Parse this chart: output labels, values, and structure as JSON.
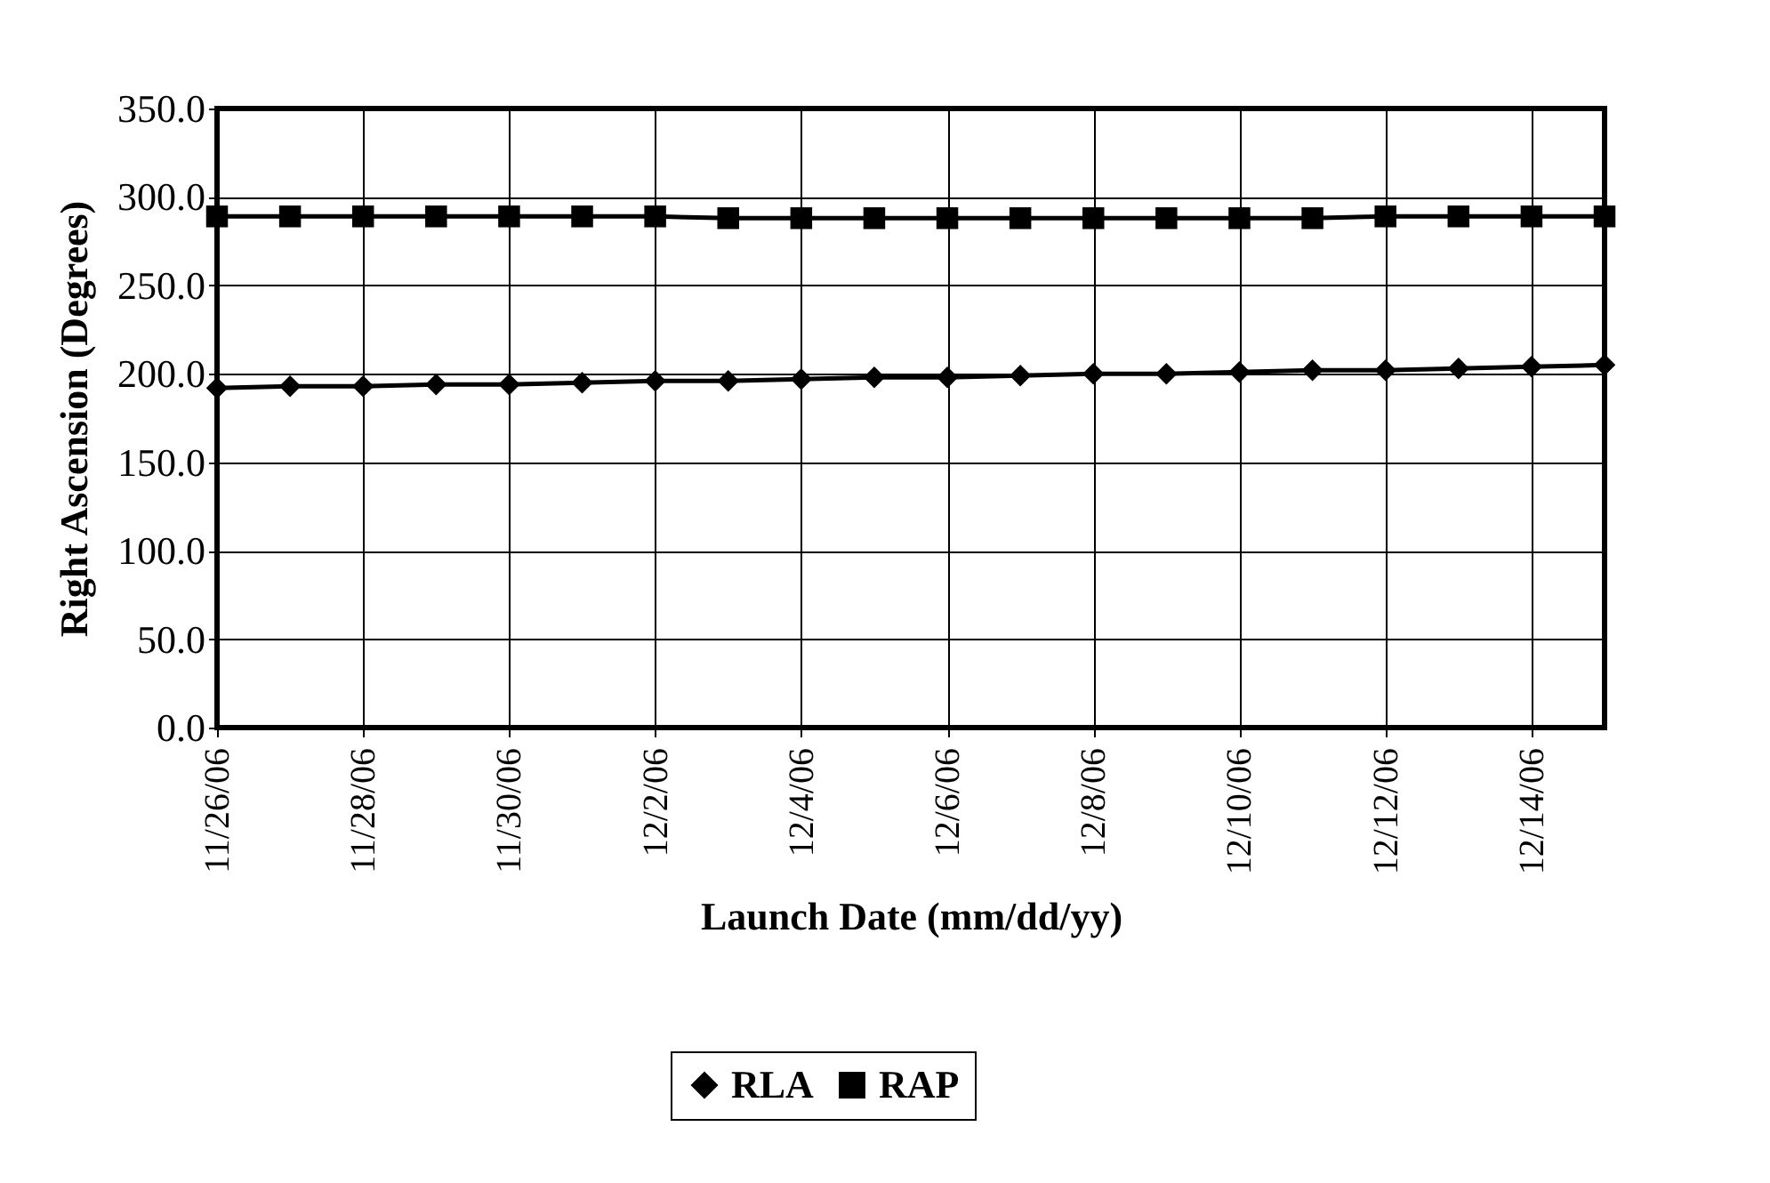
{
  "chart_data": {
    "type": "line",
    "xlabel": "Launch Date (mm/dd/yy)",
    "ylabel": "Right Ascension (Degrees)",
    "x": [
      "--11-26",
      "--11-27",
      "--11-28",
      "--11-29",
      "--11-30",
      "--12-01",
      "--12-02",
      "--12-03",
      "--12-04",
      "--12-05",
      "--12-06",
      "--12-07",
      "--12-08",
      "--12-09",
      "--12-10",
      "--12-11",
      "--12-12",
      "--12-13",
      "--12-14",
      "--12-15"
    ],
    "series": [
      {
        "name": "RLA",
        "color": "#000000",
        "marker": "diamond",
        "values": [
          192,
          193,
          193,
          194,
          194,
          195,
          196,
          196,
          197,
          198,
          198,
          199,
          200,
          200,
          201,
          202,
          202,
          203,
          204,
          205
        ]
      },
      {
        "name": "RAP",
        "color": "#000000",
        "marker": "square",
        "values": [
          289,
          289,
          289,
          289,
          289,
          289,
          289,
          288,
          288,
          288,
          288,
          288,
          288,
          288,
          288,
          288,
          289,
          289,
          289,
          289
        ]
      }
    ],
    "xlim": [
      "--11-26",
      "--12-15"
    ],
    "xticks": [
      {
        "value": "--11-26",
        "label": "11/26/06"
      },
      {
        "value": "--11-28",
        "label": "11/28/06"
      },
      {
        "value": "--11-30",
        "label": "11/30/06"
      },
      {
        "value": "--12-02",
        "label": "12/2/06"
      },
      {
        "value": "--12-04",
        "label": "12/4/06"
      },
      {
        "value": "--12-06",
        "label": "12/6/06"
      },
      {
        "value": "--12-08",
        "label": "12/8/06"
      },
      {
        "value": "--12-10",
        "label": "12/10/06"
      },
      {
        "value": "--12-12",
        "label": "12/12/06"
      },
      {
        "value": "--12-14",
        "label": "12/14/06"
      }
    ],
    "ylim": [
      0,
      350
    ],
    "yticks": [
      {
        "value": 0,
        "label": "0.0"
      },
      {
        "value": 50,
        "label": "50.0"
      },
      {
        "value": 100,
        "label": "100.0"
      },
      {
        "value": 150,
        "label": "150.0"
      },
      {
        "value": 200,
        "label": "200.0"
      },
      {
        "value": 250,
        "label": "250.0"
      },
      {
        "value": 300,
        "label": "300.0"
      },
      {
        "value": 350,
        "label": "350.0"
      }
    ],
    "grid": true,
    "legend": "bottom",
    "line_style": "solid"
  }
}
